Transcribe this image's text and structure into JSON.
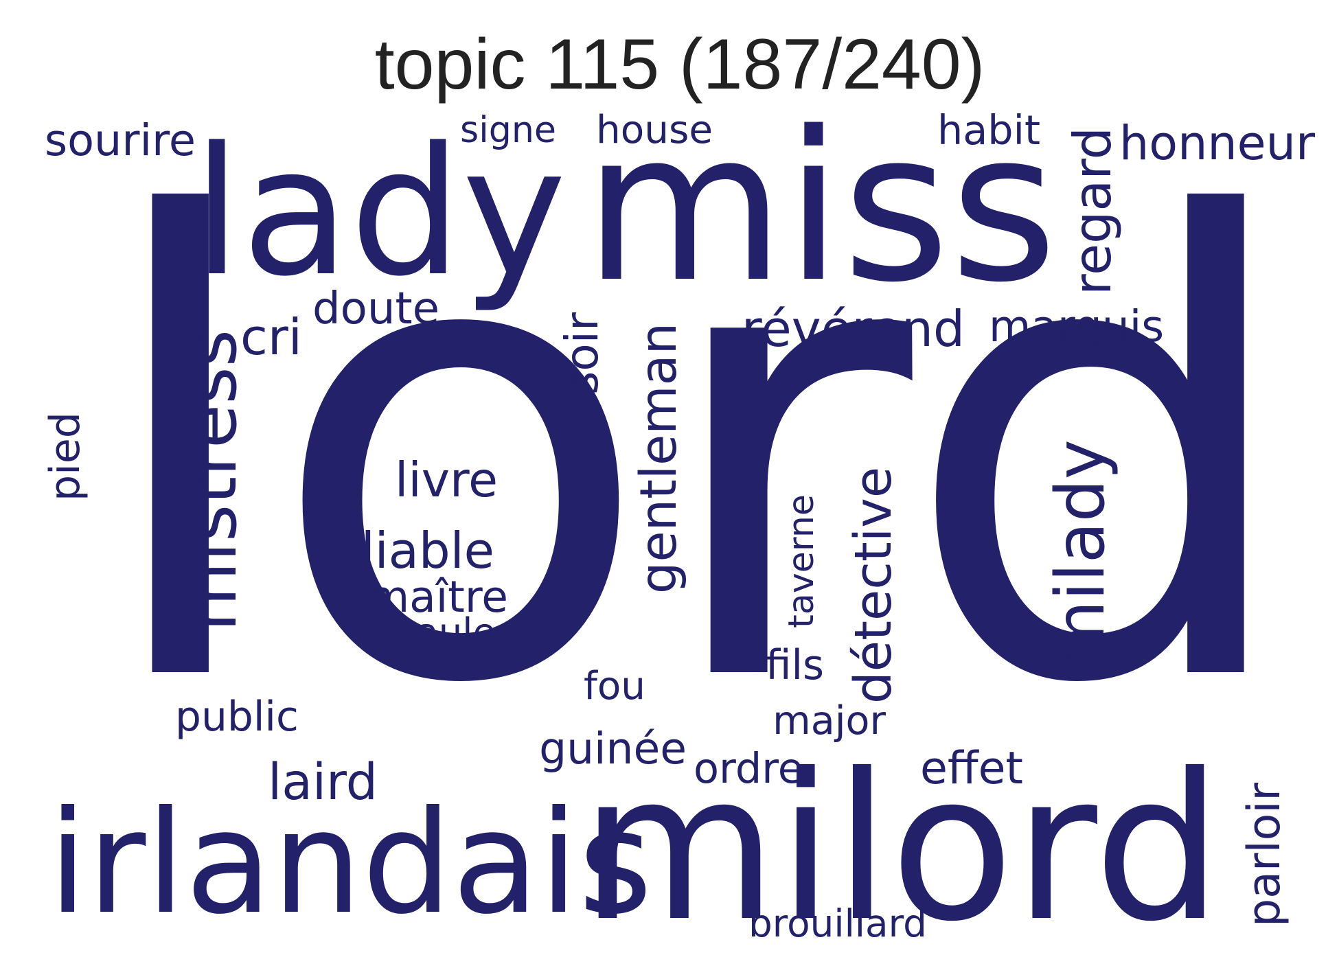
{
  "title": "topic 115 (187/240)",
  "colors": {
    "word": "#23216a",
    "title": "#222222",
    "background": "#ffffff"
  },
  "words": [
    {
      "text": "lord",
      "orientation": "horizontal"
    },
    {
      "text": "milord",
      "orientation": "horizontal"
    },
    {
      "text": "irlandais",
      "orientation": "horizontal"
    },
    {
      "text": "miss",
      "orientation": "horizontal"
    },
    {
      "text": "lady",
      "orientation": "horizontal"
    },
    {
      "text": "mistress",
      "orientation": "vertical"
    },
    {
      "text": "milady",
      "orientation": "vertical"
    },
    {
      "text": "gentleman",
      "orientation": "vertical"
    },
    {
      "text": "détective",
      "orientation": "vertical"
    },
    {
      "text": "révérend",
      "orientation": "horizontal"
    },
    {
      "text": "regard",
      "orientation": "vertical"
    },
    {
      "text": "honneur",
      "orientation": "horizontal"
    },
    {
      "text": "marquis",
      "orientation": "horizontal"
    },
    {
      "text": "doute",
      "orientation": "horizontal"
    },
    {
      "text": "cri",
      "orientation": "horizontal"
    },
    {
      "text": "livre",
      "orientation": "horizontal"
    },
    {
      "text": "diable",
      "orientation": "horizontal"
    },
    {
      "text": "maître",
      "orientation": "horizontal"
    },
    {
      "text": "épaule",
      "orientation": "horizontal"
    },
    {
      "text": "laird",
      "orientation": "horizontal"
    },
    {
      "text": "guinée",
      "orientation": "horizontal"
    },
    {
      "text": "sourire",
      "orientation": "horizontal"
    },
    {
      "text": "signe",
      "orientation": "horizontal"
    },
    {
      "text": "house",
      "orientation": "horizontal"
    },
    {
      "text": "habit",
      "orientation": "horizontal"
    },
    {
      "text": "soir",
      "orientation": "vertical"
    },
    {
      "text": "pied",
      "orientation": "vertical"
    },
    {
      "text": "taverne",
      "orientation": "vertical"
    },
    {
      "text": "fils",
      "orientation": "horizontal"
    },
    {
      "text": "fou",
      "orientation": "horizontal"
    },
    {
      "text": "public",
      "orientation": "horizontal"
    },
    {
      "text": "major",
      "orientation": "horizontal"
    },
    {
      "text": "effet",
      "orientation": "horizontal"
    },
    {
      "text": "ordre",
      "orientation": "horizontal"
    },
    {
      "text": "brouillard",
      "orientation": "horizontal"
    },
    {
      "text": "parloir",
      "orientation": "vertical"
    }
  ]
}
